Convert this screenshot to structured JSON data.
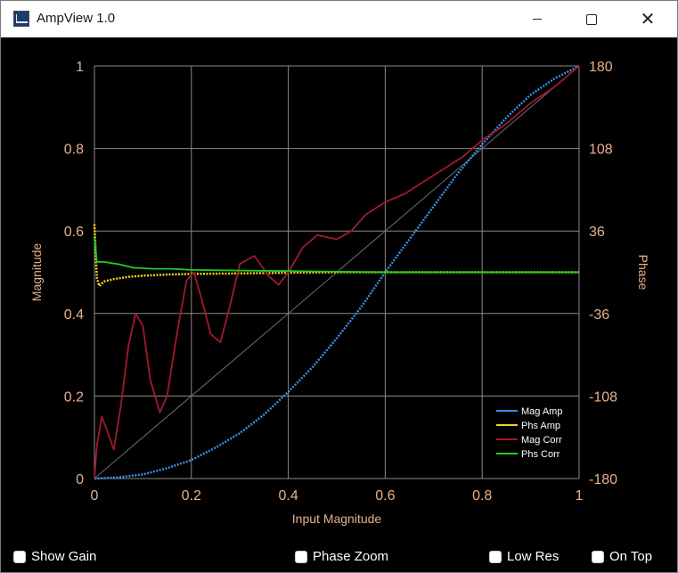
{
  "window": {
    "title": "AmpView 1.0",
    "icon": "amplifier-app-icon",
    "controls": [
      "minimize-icon",
      "maximize-icon",
      "close-icon"
    ]
  },
  "checkboxes": [
    {
      "label": "Show Gain",
      "checked": false
    },
    {
      "label": "Phase Zoom",
      "checked": false
    },
    {
      "label": "Low Res",
      "checked": false
    },
    {
      "label": "On Top",
      "checked": false
    }
  ],
  "colors": {
    "background": "#000000",
    "grid": "#8a8a8a",
    "tick_text": "#e8b08a",
    "mag_amp": "#3a8ee6",
    "phs_amp": "#f2d21b",
    "mag_corr": "#a3192e",
    "phs_corr": "#1fd11f",
    "diagonal": "#6e6e6e"
  },
  "chart_data": {
    "type": "line",
    "xlabel": "Input Magnitude",
    "ylabel": "Magnitude",
    "y2label": "Phase",
    "xlim": [
      0,
      1
    ],
    "ylim": [
      0,
      1
    ],
    "y2lim": [
      -180,
      180
    ],
    "xticks": [
      "0",
      "0.2",
      "0.4",
      "0.6",
      "0.8",
      "1"
    ],
    "yticks": [
      "0",
      "0.2",
      "0.4",
      "0.6",
      "0.8",
      "1"
    ],
    "y2ticks": [
      "-180",
      "-108",
      "-36",
      "36",
      "108",
      "180"
    ],
    "grid": true,
    "legend_position": "bottom-right",
    "series": [
      {
        "name": "Mag Amp",
        "color": "#3a8ee6",
        "axis": "left",
        "x": [
          0,
          0.05,
          0.1,
          0.15,
          0.2,
          0.25,
          0.3,
          0.35,
          0.4,
          0.45,
          0.5,
          0.55,
          0.6,
          0.65,
          0.7,
          0.75,
          0.8,
          0.85,
          0.9,
          0.95,
          1.0
        ],
        "y": [
          0,
          0.003,
          0.01,
          0.025,
          0.045,
          0.075,
          0.11,
          0.155,
          0.21,
          0.27,
          0.34,
          0.415,
          0.5,
          0.58,
          0.66,
          0.74,
          0.81,
          0.875,
          0.93,
          0.97,
          1.0
        ]
      },
      {
        "name": "Phs Amp",
        "color": "#f2d21b",
        "axis": "right",
        "x": [
          0,
          0.005,
          0.01,
          0.02,
          0.04,
          0.07,
          0.1,
          0.15,
          0.2,
          0.3,
          0.4,
          0.5,
          0.6,
          0.7,
          0.8,
          0.9,
          1.0
        ],
        "y": [
          42,
          -5,
          -12,
          -8,
          -6,
          -4,
          -3,
          -2,
          -1.5,
          -1,
          -0.5,
          0,
          0,
          0,
          0,
          0,
          0
        ]
      },
      {
        "name": "Mag Corr",
        "color": "#a3192e",
        "axis": "left",
        "x": [
          0,
          0.005,
          0.015,
          0.025,
          0.04,
          0.055,
          0.07,
          0.085,
          0.1,
          0.115,
          0.135,
          0.15,
          0.17,
          0.19,
          0.205,
          0.22,
          0.24,
          0.26,
          0.28,
          0.3,
          0.33,
          0.36,
          0.38,
          0.4,
          0.43,
          0.46,
          0.48,
          0.5,
          0.53,
          0.56,
          0.6,
          0.64,
          0.68,
          0.72,
          0.76,
          0.8,
          0.85,
          0.9,
          0.95,
          1.0
        ],
        "y": [
          0.0,
          0.08,
          0.15,
          0.12,
          0.07,
          0.18,
          0.32,
          0.4,
          0.37,
          0.24,
          0.16,
          0.2,
          0.35,
          0.48,
          0.5,
          0.44,
          0.35,
          0.33,
          0.42,
          0.52,
          0.54,
          0.49,
          0.47,
          0.5,
          0.56,
          0.59,
          0.585,
          0.58,
          0.6,
          0.64,
          0.67,
          0.69,
          0.72,
          0.75,
          0.78,
          0.82,
          0.86,
          0.91,
          0.95,
          1.0
        ]
      },
      {
        "name": "Phs Corr",
        "color": "#1fd11f",
        "axis": "right",
        "x": [
          0,
          0.005,
          0.02,
          0.05,
          0.08,
          0.12,
          0.16,
          0.2,
          0.3,
          0.4,
          0.5,
          0.6,
          0.8,
          1.0
        ],
        "y": [
          30,
          9,
          9,
          7,
          4,
          3,
          3,
          2,
          1.5,
          1,
          0.5,
          0,
          0,
          0
        ]
      }
    ]
  }
}
